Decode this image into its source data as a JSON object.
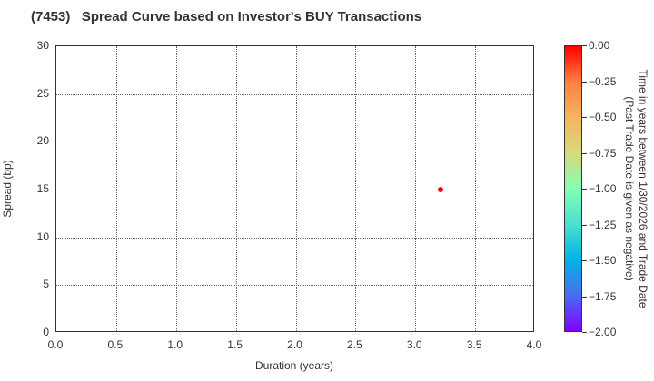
{
  "title": "(7453)   Spread Curve based on Investor's BUY Transactions",
  "xaxis": {
    "label": "Duration (years)",
    "ticks": [
      "0.0",
      "0.5",
      "1.0",
      "1.5",
      "2.0",
      "2.5",
      "3.0",
      "3.5",
      "4.0"
    ]
  },
  "yaxis": {
    "label": "Spread (bp)",
    "ticks": [
      "0",
      "5",
      "10",
      "15",
      "20",
      "25",
      "30"
    ]
  },
  "colorbar": {
    "label_line1": "Time in years between 1/30/2026 and Trade Date",
    "label_line2": "(Past Trade Date is given as negative)",
    "ticks": [
      "0.00",
      "−0.25",
      "−0.50",
      "−0.75",
      "−1.00",
      "−1.25",
      "−1.50",
      "−1.75",
      "−2.00"
    ]
  },
  "chart_data": {
    "type": "scatter",
    "title": "(7453)   Spread Curve based on Investor's BUY Transactions",
    "xlabel": "Duration (years)",
    "ylabel": "Spread (bp)",
    "xlim": [
      0.0,
      4.0
    ],
    "ylim": [
      0,
      30
    ],
    "grid": true,
    "x_ticks": [
      0.0,
      0.5,
      1.0,
      1.5,
      2.0,
      2.5,
      3.0,
      3.5,
      4.0
    ],
    "y_ticks": [
      0,
      5,
      10,
      15,
      20,
      25,
      30
    ],
    "points": [
      {
        "x": 3.21,
        "y": 15,
        "color_value": 0.0,
        "color": "#ff0000"
      }
    ],
    "colorbar": {
      "label": "Time in years between 1/30/2026 and Trade Date (Past Trade Date is given as negative)",
      "range": [
        -2.0,
        0.0
      ],
      "ticks": [
        0.0,
        -0.25,
        -0.5,
        -0.75,
        -1.0,
        -1.25,
        -1.5,
        -1.75,
        -2.0
      ],
      "colormap": "rainbow",
      "position": "right"
    }
  }
}
